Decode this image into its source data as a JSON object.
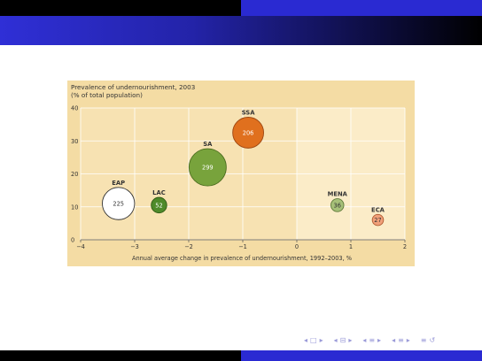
{
  "slide": {
    "title": "",
    "colors": {
      "top_left": "#000000",
      "top_right": "#2a2ad2",
      "title_bar": "#2323a8"
    }
  },
  "chart_data": {
    "type": "scatter",
    "title": "Prevalence of undernourishment, 2003",
    "subtitle": "(% of total population)",
    "xlabel": "Annual average change in prevalence of undernourishment, 1992–2003, %",
    "ylabel": "",
    "xlim": [
      -4,
      2
    ],
    "ylim": [
      0,
      40
    ],
    "xticks": [
      -4,
      -3,
      -2,
      -1,
      0,
      1,
      2
    ],
    "yticks": [
      0,
      10,
      20,
      30,
      40
    ],
    "grid": true,
    "background": "#f4dca4",
    "plot_background_left": "#f7e2b2",
    "plot_background_right": "#fbecc8",
    "points": [
      {
        "label": "EAP",
        "x": -3.3,
        "y": 11,
        "size": 225,
        "color": "#ffffff",
        "stroke": "#333333",
        "text_color": "#333333"
      },
      {
        "label": "LAC",
        "x": -2.55,
        "y": 10.5,
        "size": 52,
        "color": "#4e8a2a",
        "stroke": "#2f5a14",
        "text_color": "#ffffff"
      },
      {
        "label": "SA",
        "x": -1.65,
        "y": 22,
        "size": 299,
        "color": "#78a33c",
        "stroke": "#4d6e20",
        "text_color": "#ffffff"
      },
      {
        "label": "SSA",
        "x": -0.9,
        "y": 32.5,
        "size": 206,
        "color": "#e0701e",
        "stroke": "#9c4510",
        "text_color": "#ffffff"
      },
      {
        "label": "MENA",
        "x": 0.75,
        "y": 10.5,
        "size": 36,
        "color": "#a6c078",
        "stroke": "#5f7a3a",
        "text_color": "#333333"
      },
      {
        "label": "ECA",
        "x": 1.5,
        "y": 6,
        "size": 27,
        "color": "#f1a07a",
        "stroke": "#b05a30",
        "text_color": "#333333"
      }
    ]
  },
  "nav": {
    "icons": [
      "first-frame-icon",
      "prev-frame-icon",
      "frame-icon",
      "next-frame-icon",
      "prev-section-icon",
      "section-icon",
      "next-section-icon",
      "prev-subsection-icon",
      "subsection-icon",
      "next-subsection-icon",
      "toc-icon",
      "search-icon"
    ],
    "symbols": [
      "◂",
      "□",
      "▸",
      "◂",
      "⊟",
      "▸",
      "◂",
      "≡",
      "▸",
      "◂",
      "≡",
      "▸",
      "≡",
      "↺"
    ]
  }
}
